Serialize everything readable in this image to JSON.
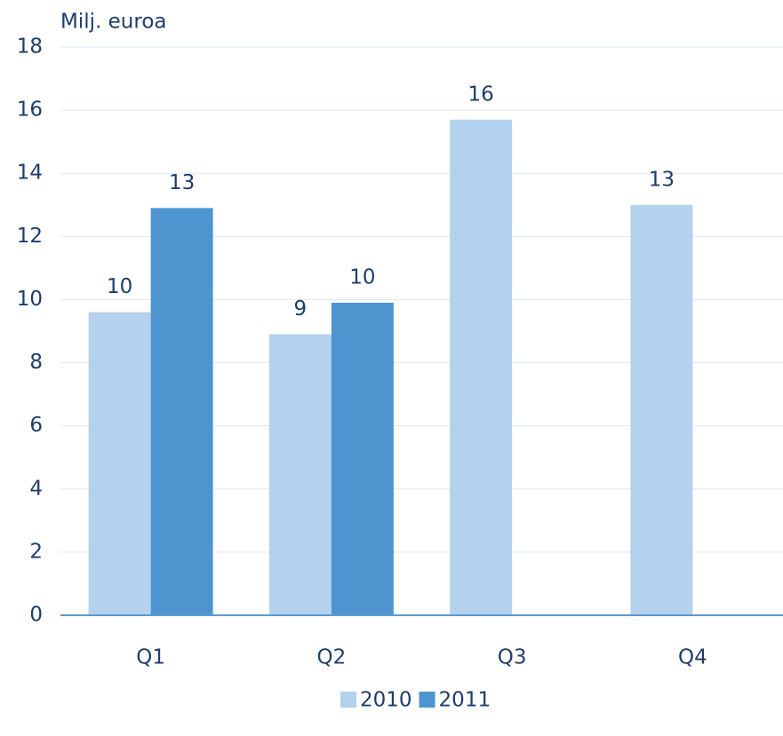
{
  "chart_data": {
    "type": "bar",
    "y_label": "Milj. euroa",
    "categories": [
      "Q1",
      "Q2",
      "Q3",
      "Q4"
    ],
    "series": [
      {
        "name": "2010",
        "color": "#b4d1ed",
        "values": [
          9.6,
          8.9,
          15.7,
          13.0
        ],
        "value_labels": [
          "10",
          "9",
          "16",
          "13"
        ]
      },
      {
        "name": "2011",
        "color": "#4e95d0",
        "values": [
          12.9,
          9.9,
          null,
          null
        ],
        "value_labels": [
          "13",
          "10",
          null,
          null
        ]
      }
    ],
    "ylim": [
      0,
      18
    ],
    "yticks": [
      0,
      2,
      4,
      6,
      8,
      10,
      12,
      14,
      16,
      18
    ],
    "grid": true,
    "legend": "bottom"
  }
}
